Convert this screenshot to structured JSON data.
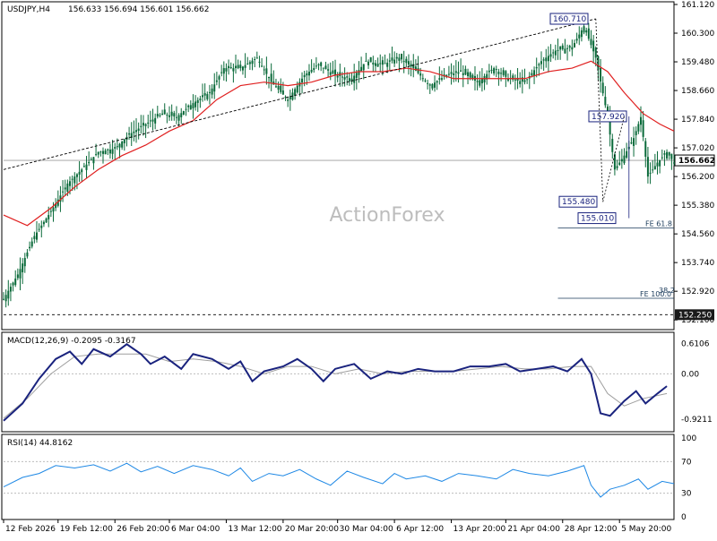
{
  "header": {
    "symbol": "USDJPY,H4",
    "ohlc": "156.633 156.694 156.601 156.662",
    "watermark": "ActionForex"
  },
  "colors": {
    "candle": "#0a6a3a",
    "ema": "#e02020",
    "trendline": "#000000",
    "macd_main": "#1a237e",
    "macd_signal": "#9e9e9e",
    "rsi": "#1e88e5"
  },
  "chart_data": [
    {
      "type": "candlestick",
      "title": "USDJPY,H4",
      "ylim": [
        151.9,
        161.12
      ],
      "price_ticks": [
        "161.120",
        "160.300",
        "159.480",
        "158.660",
        "157.840",
        "157.020",
        "156.200",
        "155.380",
        "154.560",
        "153.740",
        "152.920",
        "152.100"
      ],
      "current_price": "156.662",
      "support_label": "152.250",
      "x_ticks": [
        "12 Feb 2026",
        "19 Feb 12:00",
        "26 Feb 20:00",
        "6 Mar 04:00",
        "13 Mar 12:00",
        "20 Mar 20:00",
        "30 Mar 04:00",
        "6 Apr 12:00",
        "13 Apr 20:00",
        "21 Apr 04:00",
        "28 Apr 12:00",
        "5 May 20:00"
      ],
      "annotations": [
        {
          "label": "160.710",
          "price": 160.71
        },
        {
          "label": "157.920",
          "price": 157.92
        },
        {
          "label": "155.480",
          "price": 155.48
        },
        {
          "label": "155.010",
          "price": 155.01
        }
      ],
      "fib_levels": [
        {
          "label": "FE 61.8",
          "price": 154.73
        },
        {
          "label": "FE 100.0",
          "price": 152.72
        },
        {
          "label": "38.2",
          "price": 152.82
        }
      ],
      "close_path": [
        [
          0,
          152.7
        ],
        [
          6,
          153.4
        ],
        [
          13,
          154.5
        ],
        [
          20,
          155.2
        ],
        [
          27,
          156.0
        ],
        [
          33,
          156.4
        ],
        [
          40,
          156.9
        ],
        [
          47,
          157.0
        ],
        [
          53,
          157.4
        ],
        [
          60,
          157.7
        ],
        [
          67,
          158.0
        ],
        [
          73,
          157.9
        ],
        [
          80,
          158.3
        ],
        [
          87,
          158.6
        ],
        [
          93,
          159.3
        ],
        [
          100,
          159.3
        ],
        [
          107,
          159.6
        ],
        [
          113,
          158.9
        ],
        [
          120,
          158.4
        ],
        [
          127,
          159.1
        ],
        [
          133,
          159.4
        ],
        [
          140,
          159.1
        ],
        [
          147,
          159.0
        ],
        [
          153,
          159.5
        ],
        [
          160,
          159.4
        ],
        [
          167,
          159.6
        ],
        [
          173,
          159.3
        ],
        [
          180,
          158.8
        ],
        [
          187,
          159.1
        ],
        [
          193,
          159.2
        ],
        [
          200,
          158.9
        ],
        [
          207,
          159.3
        ],
        [
          213,
          159.0
        ],
        [
          220,
          158.9
        ],
        [
          227,
          159.5
        ],
        [
          233,
          159.8
        ],
        [
          240,
          159.9
        ],
        [
          245,
          160.5
        ],
        [
          250,
          159.6
        ],
        [
          255,
          157.9
        ],
        [
          258,
          156.4
        ],
        [
          262,
          156.8
        ],
        [
          266,
          157.3
        ],
        [
          269,
          157.9
        ],
        [
          272,
          156.2
        ],
        [
          276,
          156.6
        ],
        [
          280,
          156.9
        ],
        [
          283,
          156.6
        ]
      ],
      "ema_path": [
        [
          0,
          155.1
        ],
        [
          10,
          154.8
        ],
        [
          20,
          155.3
        ],
        [
          30,
          155.9
        ],
        [
          40,
          156.4
        ],
        [
          50,
          156.8
        ],
        [
          60,
          157.1
        ],
        [
          70,
          157.5
        ],
        [
          80,
          157.8
        ],
        [
          90,
          158.4
        ],
        [
          100,
          158.8
        ],
        [
          110,
          158.9
        ],
        [
          120,
          158.8
        ],
        [
          130,
          158.9
        ],
        [
          140,
          159.1
        ],
        [
          150,
          159.2
        ],
        [
          160,
          159.2
        ],
        [
          170,
          159.3
        ],
        [
          180,
          159.2
        ],
        [
          190,
          159.0
        ],
        [
          200,
          159.0
        ],
        [
          210,
          159.0
        ],
        [
          220,
          159.0
        ],
        [
          230,
          159.2
        ],
        [
          240,
          159.3
        ],
        [
          248,
          159.5
        ],
        [
          255,
          159.2
        ],
        [
          262,
          158.6
        ],
        [
          270,
          158.0
        ],
        [
          277,
          157.7
        ],
        [
          283,
          157.5
        ]
      ],
      "trendline": [
        [
          0,
          156.4
        ],
        [
          250,
          160.71
        ]
      ]
    },
    {
      "type": "line",
      "title": "MACD(12,26,9) -0.2095 -0.3167",
      "ylim": [
        -1.1,
        0.75
      ],
      "y_ticks": [
        "0.6106",
        "0.00",
        "-0.9211"
      ],
      "series": [
        {
          "name": "MACD",
          "values": [
            [
              0,
              -0.95
            ],
            [
              8,
              -0.6
            ],
            [
              15,
              -0.1
            ],
            [
              22,
              0.3
            ],
            [
              28,
              0.45
            ],
            [
              33,
              0.2
            ],
            [
              38,
              0.5
            ],
            [
              45,
              0.35
            ],
            [
              52,
              0.6
            ],
            [
              58,
              0.4
            ],
            [
              62,
              0.2
            ],
            [
              68,
              0.35
            ],
            [
              75,
              0.1
            ],
            [
              80,
              0.4
            ],
            [
              88,
              0.3
            ],
            [
              95,
              0.1
            ],
            [
              100,
              0.25
            ],
            [
              105,
              -0.15
            ],
            [
              110,
              0.05
            ],
            [
              118,
              0.15
            ],
            [
              124,
              0.3
            ],
            [
              130,
              0.1
            ],
            [
              135,
              -0.15
            ],
            [
              140,
              0.1
            ],
            [
              148,
              0.2
            ],
            [
              155,
              -0.1
            ],
            [
              162,
              0.05
            ],
            [
              168,
              0.0
            ],
            [
              175,
              0.1
            ],
            [
              182,
              0.05
            ],
            [
              190,
              0.05
            ],
            [
              197,
              0.15
            ],
            [
              205,
              0.15
            ],
            [
              212,
              0.2
            ],
            [
              218,
              0.05
            ],
            [
              225,
              0.1
            ],
            [
              232,
              0.15
            ],
            [
              238,
              0.05
            ],
            [
              244,
              0.3
            ],
            [
              248,
              0.0
            ],
            [
              252,
              -0.8
            ],
            [
              256,
              -0.85
            ],
            [
              262,
              -0.55
            ],
            [
              267,
              -0.35
            ],
            [
              271,
              -0.6
            ],
            [
              276,
              -0.4
            ],
            [
              280,
              -0.25
            ]
          ]
        },
        {
          "name": "Signal",
          "values": [
            [
              0,
              -0.9
            ],
            [
              10,
              -0.5
            ],
            [
              20,
              0.0
            ],
            [
              30,
              0.35
            ],
            [
              40,
              0.4
            ],
            [
              50,
              0.4
            ],
            [
              60,
              0.4
            ],
            [
              70,
              0.25
            ],
            [
              80,
              0.3
            ],
            [
              90,
              0.25
            ],
            [
              100,
              0.15
            ],
            [
              110,
              0.0
            ],
            [
              120,
              0.15
            ],
            [
              130,
              0.15
            ],
            [
              140,
              0.0
            ],
            [
              150,
              0.1
            ],
            [
              160,
              0.0
            ],
            [
              170,
              0.05
            ],
            [
              180,
              0.05
            ],
            [
              190,
              0.05
            ],
            [
              200,
              0.1
            ],
            [
              210,
              0.15
            ],
            [
              220,
              0.1
            ],
            [
              230,
              0.1
            ],
            [
              240,
              0.15
            ],
            [
              248,
              0.15
            ],
            [
              255,
              -0.4
            ],
            [
              262,
              -0.65
            ],
            [
              270,
              -0.5
            ],
            [
              280,
              -0.4
            ]
          ]
        }
      ]
    },
    {
      "type": "line",
      "title": "RSI(14) 44.8162",
      "ylim": [
        0,
        100
      ],
      "y_ticks": [
        "100",
        "70",
        "30",
        "0"
      ],
      "series": [
        {
          "name": "RSI",
          "values": [
            [
              0,
              38
            ],
            [
              8,
              50
            ],
            [
              15,
              55
            ],
            [
              22,
              65
            ],
            [
              30,
              62
            ],
            [
              38,
              66
            ],
            [
              45,
              58
            ],
            [
              52,
              68
            ],
            [
              58,
              57
            ],
            [
              65,
              64
            ],
            [
              72,
              55
            ],
            [
              80,
              65
            ],
            [
              88,
              60
            ],
            [
              95,
              52
            ],
            [
              100,
              62
            ],
            [
              105,
              45
            ],
            [
              112,
              55
            ],
            [
              118,
              52
            ],
            [
              125,
              60
            ],
            [
              132,
              48
            ],
            [
              138,
              40
            ],
            [
              145,
              58
            ],
            [
              152,
              50
            ],
            [
              160,
              42
            ],
            [
              165,
              55
            ],
            [
              170,
              48
            ],
            [
              178,
              52
            ],
            [
              185,
              45
            ],
            [
              192,
              55
            ],
            [
              200,
              52
            ],
            [
              208,
              48
            ],
            [
              215,
              60
            ],
            [
              222,
              55
            ],
            [
              230,
              52
            ],
            [
              238,
              58
            ],
            [
              245,
              65
            ],
            [
              248,
              40
            ],
            [
              252,
              25
            ],
            [
              256,
              35
            ],
            [
              262,
              40
            ],
            [
              268,
              48
            ],
            [
              272,
              35
            ],
            [
              278,
              45
            ],
            [
              283,
              42
            ]
          ]
        }
      ]
    }
  ]
}
